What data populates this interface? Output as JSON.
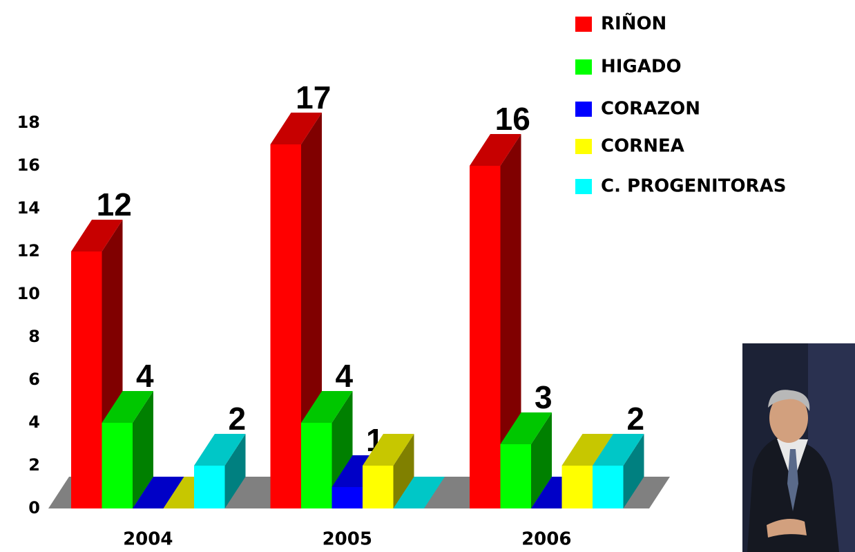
{
  "chart_data": {
    "type": "bar3d",
    "categories": [
      "2004",
      "2005",
      "2006"
    ],
    "series": [
      {
        "name": "RIÑON",
        "color": "#ff0000",
        "values": [
          12,
          17,
          16
        ],
        "value_labels": [
          "12",
          "17",
          "16"
        ]
      },
      {
        "name": "HIGADO",
        "color": "#00ff00",
        "values": [
          4,
          4,
          3
        ],
        "value_labels": [
          "4",
          "4",
          "3"
        ]
      },
      {
        "name": "CORAZON",
        "color": "#0000ff",
        "values": [
          0,
          1,
          0
        ],
        "value_labels": [
          null,
          "1",
          null
        ]
      },
      {
        "name": "CORNEA",
        "color": "#ffff00",
        "values": [
          0,
          2,
          2
        ],
        "value_labels": [
          null,
          null,
          null
        ]
      },
      {
        "name": "C. PROGENITORAS",
        "color": "#00ffff",
        "values": [
          2,
          0,
          2
        ],
        "value_labels": [
          "2",
          null,
          "2"
        ]
      }
    ],
    "ylim": [
      0,
      18
    ],
    "yticks": [
      0,
      2,
      4,
      6,
      8,
      10,
      12,
      14,
      16,
      18
    ],
    "legend": "top-right",
    "floor_color": "#808080"
  }
}
